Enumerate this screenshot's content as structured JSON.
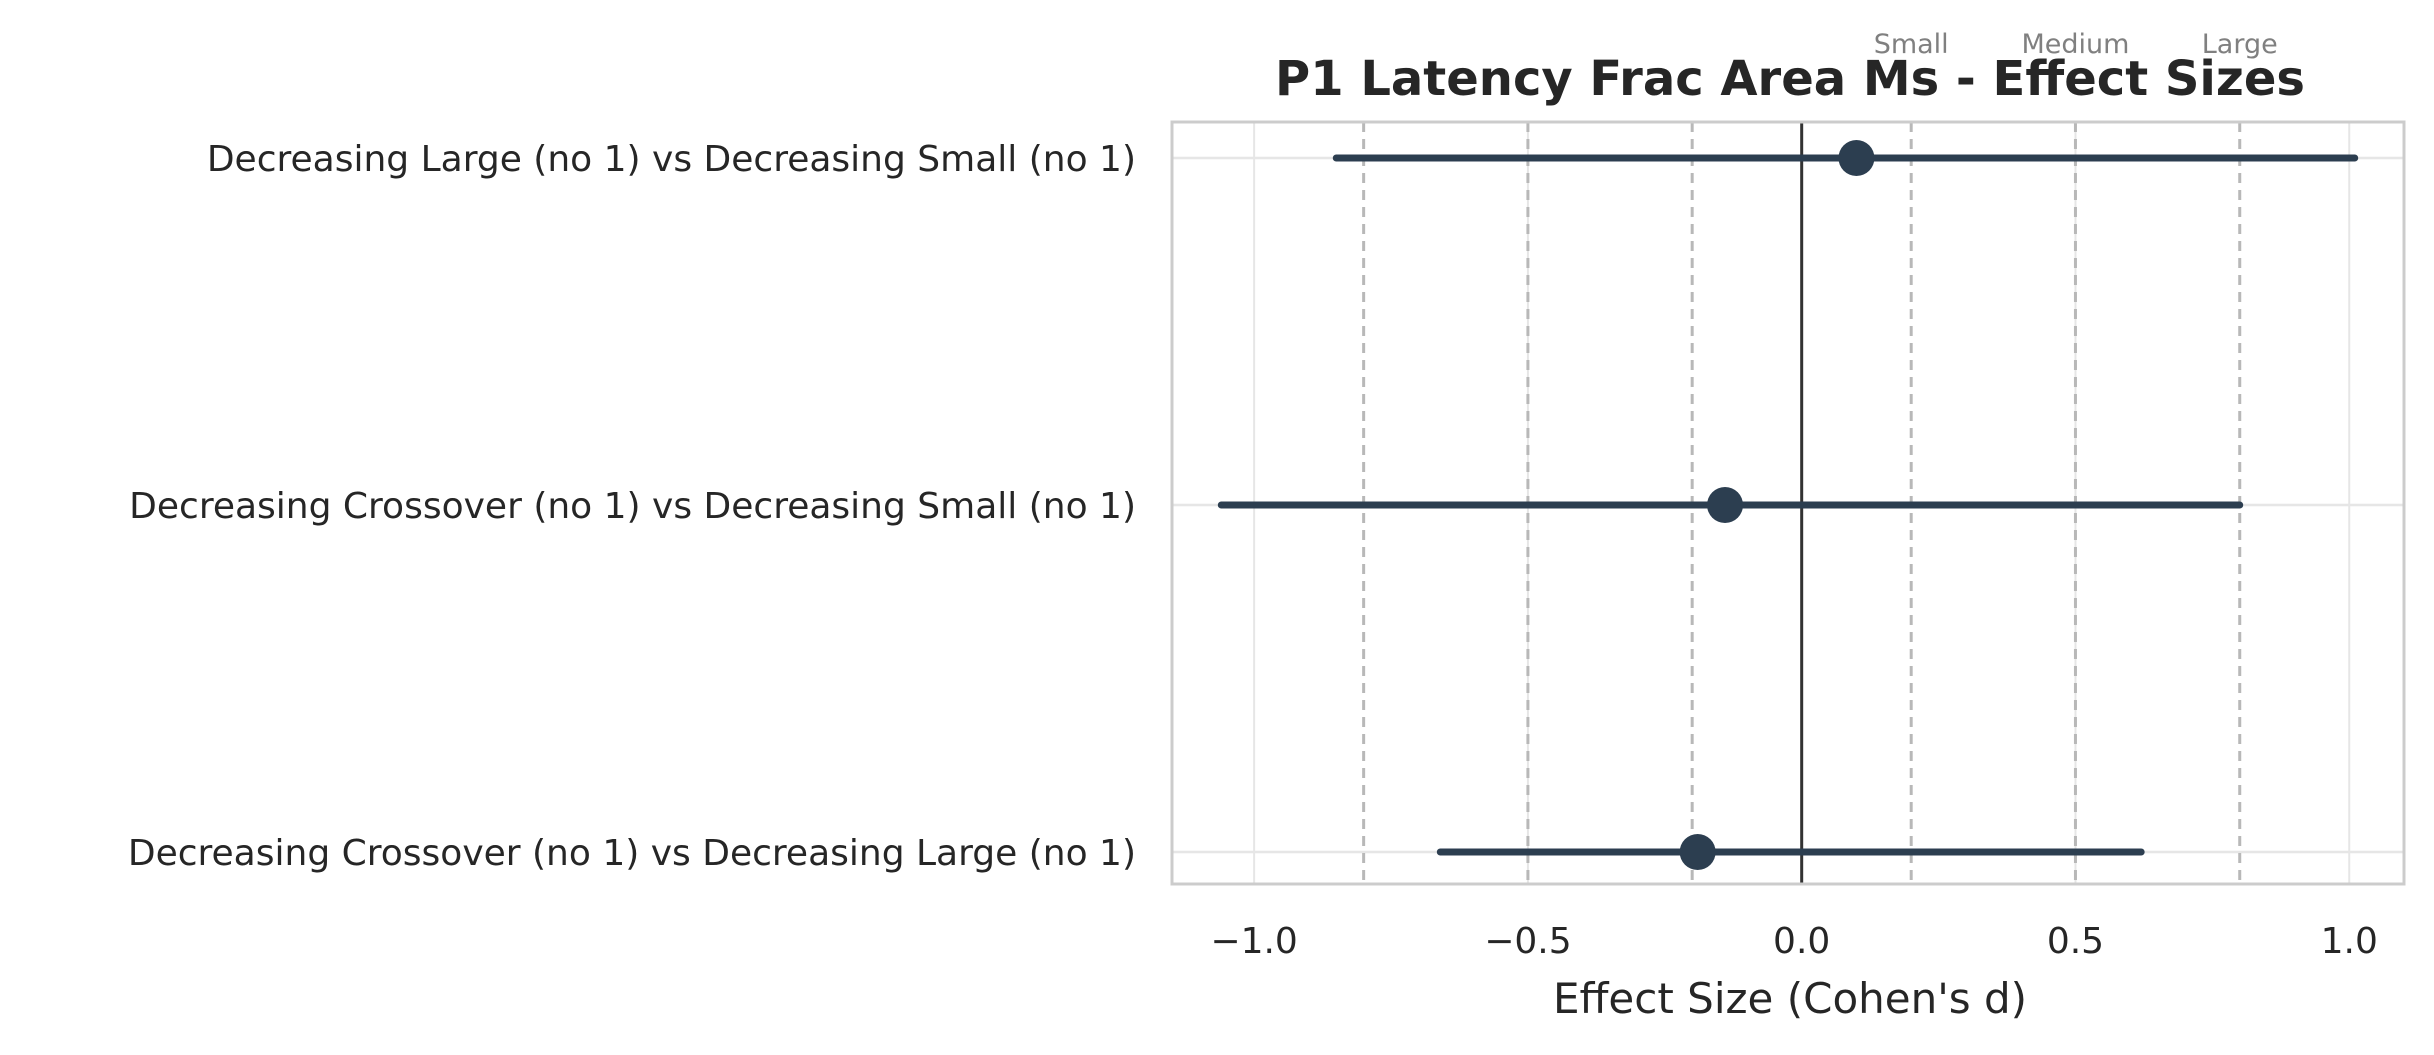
{
  "chart_data": {
    "type": "forest",
    "title": "P1 Latency Frac Area Ms - Effect Sizes",
    "xlabel": "Effect Size (Cohen's d)",
    "ylabel": "",
    "xlim": [
      -1.15,
      1.1
    ],
    "x_ticks": [
      -1.0,
      -0.5,
      0.0,
      0.5,
      1.0
    ],
    "x_tick_labels": [
      "−1.0",
      "−0.5",
      "0.0",
      "0.5",
      "1.0"
    ],
    "grid": true,
    "categories": [
      "Decreasing Large (no 1) vs Decreasing Small (no 1)",
      "Decreasing Crossover (no 1) vs Decreasing Small (no 1)",
      "Decreasing Crossover (no 1) vs Decreasing Large (no 1)"
    ],
    "series": [
      {
        "estimates": [
          0.1,
          -0.14,
          -0.19
        ],
        "ci_lower": [
          -0.85,
          -1.06,
          -0.66
        ],
        "ci_upper": [
          1.01,
          0.8,
          0.62
        ]
      }
    ],
    "reference_line": 0.0,
    "thresholds": [
      {
        "label": "Small",
        "value": 0.2
      },
      {
        "label": "Medium",
        "value": 0.5
      },
      {
        "label": "Large",
        "value": 0.8
      }
    ],
    "colors": {
      "marker": "#2c3e50",
      "threshold_line": "#b8b8b8",
      "grid": "#e6e6e6",
      "frame": "#cccccc",
      "zero_line": "#333333",
      "threshold_text": "#808080",
      "text": "#262626"
    }
  }
}
